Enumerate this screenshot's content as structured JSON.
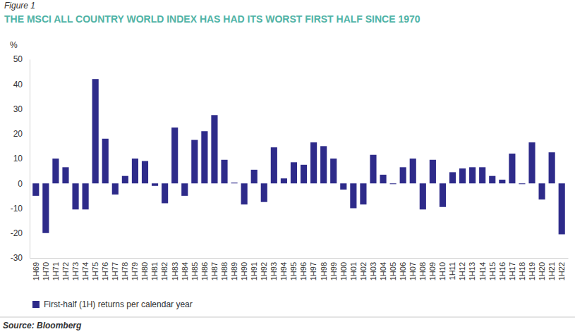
{
  "chart_data": {
    "type": "bar",
    "figure_label": "Figure 1",
    "title": "THE MSCI ALL COUNTRY WORLD INDEX HAS HAD ITS WORST FIRST HALF SINCE 1970",
    "y_label": "%",
    "source": "Source: Bloomberg",
    "categories": [
      "1H69",
      "1H70",
      "1H71",
      "1H72",
      "1H73",
      "1H74",
      "1H75",
      "1H76",
      "1H77",
      "1H78",
      "1H79",
      "1H80",
      "1H81",
      "1H82",
      "1H83",
      "1H84",
      "1H85",
      "1H86",
      "1H87",
      "1H88",
      "1H89",
      "1H90",
      "1H91",
      "1H92",
      "1H93",
      "1H94",
      "1H95",
      "1H96",
      "1H97",
      "1H98",
      "1H99",
      "1H00",
      "1H01",
      "1H02",
      "1H03",
      "1H04",
      "1H05",
      "1H06",
      "1H07",
      "1H08",
      "1H09",
      "1H10",
      "1H11",
      "1H12",
      "1H13",
      "1H14",
      "1H15",
      "1H16",
      "1H17",
      "1H18",
      "1H19",
      "1H20",
      "1H21",
      "1H22"
    ],
    "series": [
      {
        "name": "First-half (1H) returns per calendar year",
        "color": "#2e2b8a",
        "values": [
          -5,
          -20,
          10,
          6.5,
          -10.5,
          -10.5,
          42,
          18,
          -4.5,
          3,
          10,
          9,
          -1,
          -8,
          22.5,
          -5,
          17.5,
          21,
          27.5,
          9.5,
          0.3,
          -8.5,
          5.5,
          -7.5,
          14.5,
          2,
          8.5,
          7.5,
          16.5,
          15,
          10,
          -2.5,
          -10,
          -8.5,
          11.5,
          3.5,
          -0.3,
          6.5,
          10,
          -10.5,
          9.5,
          -9.5,
          4.5,
          6,
          6.5,
          6.5,
          3,
          1.5,
          12,
          -0.3,
          16.5,
          -6.5,
          12.5,
          -20.5
        ]
      }
    ],
    "ylim": [
      -30,
      50
    ],
    "yticks": [
      -30,
      -20,
      -10,
      0,
      10,
      20,
      30,
      40,
      50
    ],
    "grid": false,
    "legend": "bottom"
  }
}
